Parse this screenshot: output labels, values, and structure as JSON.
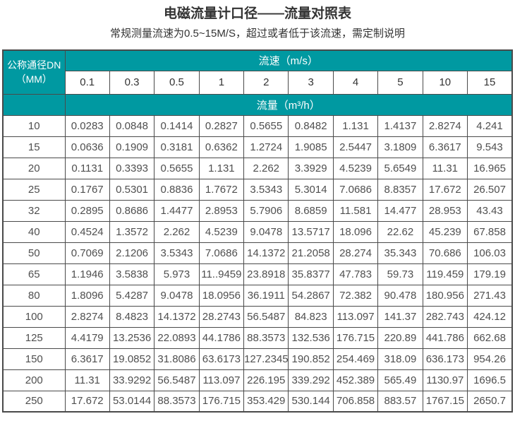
{
  "page": {
    "title": "电磁流量计口径——流量对照表",
    "subtitle": "常规测量流速为0.5~15M/S，超过或者低于该流速，需定制说明"
  },
  "chart_data": {
    "type": "table",
    "title": "电磁流量计口径——流量对照表",
    "subtitle": "常规测量流速为0.5~15M/S，超过或者低于该流速，需定制说明",
    "corner_header_line1": "公称通径DN",
    "corner_header_line2": "（MM）",
    "speed_header": "流速（m/s）",
    "flow_header": "流量（m³/h）",
    "speed_values": [
      "0.1",
      "0.3",
      "0.5",
      "1",
      "2",
      "3",
      "4",
      "5",
      "10",
      "15"
    ],
    "rows": [
      {
        "dn": "10",
        "flows": [
          "0.0283",
          "0.0848",
          "0.1414",
          "0.2827",
          "0.5655",
          "0.8482",
          "1.131",
          "1.4137",
          "2.8274",
          "4.241"
        ]
      },
      {
        "dn": "15",
        "flows": [
          "0.0636",
          "0.1909",
          "0.3181",
          "0.6362",
          "1.2724",
          "1.9085",
          "2.5447",
          "3.1809",
          "6.3617",
          "9.543"
        ]
      },
      {
        "dn": "20",
        "flows": [
          "0.1131",
          "0.3393",
          "0.5655",
          "1.131",
          "2.262",
          "3.3929",
          "4.5239",
          "5.6549",
          "11.31",
          "16.965"
        ]
      },
      {
        "dn": "25",
        "flows": [
          "0.1767",
          "0.5301",
          "0.8836",
          "1.7672",
          "3.5343",
          "5.3014",
          "7.0686",
          "8.8357",
          "17.672",
          "26.507"
        ]
      },
      {
        "dn": "32",
        "flows": [
          "0.2895",
          "0.8686",
          "1.4477",
          "2.8953",
          "5.7906",
          "8.6859",
          "11.581",
          "14.477",
          "28.953",
          "43.43"
        ]
      },
      {
        "dn": "40",
        "flows": [
          "0.4524",
          "1.3572",
          "2.262",
          "4.5239",
          "9.0478",
          "13.5717",
          "18.096",
          "22.62",
          "45.239",
          "67.858"
        ]
      },
      {
        "dn": "50",
        "flows": [
          "0.7069",
          "2.1206",
          "3.5343",
          "7.0686",
          "14.1372",
          "21.2058",
          "28.274",
          "35.343",
          "70.686",
          "106.03"
        ]
      },
      {
        "dn": "65",
        "flows": [
          "1.1946",
          "3.5838",
          "5.973",
          "11..9459",
          "23.8918",
          "35.8377",
          "47.783",
          "59.73",
          "119.459",
          "179.19"
        ]
      },
      {
        "dn": "80",
        "flows": [
          "1.8096",
          "5.4287",
          "9.0478",
          "18.0956",
          "36.1911",
          "54.2867",
          "72.382",
          "90.478",
          "180.956",
          "271.43"
        ]
      },
      {
        "dn": "100",
        "flows": [
          "2.8274",
          "8.4823",
          "14.1372",
          "28.2743",
          "56.5487",
          "84.823",
          "113.097",
          "141.37",
          "282.743",
          "424.12"
        ]
      },
      {
        "dn": "125",
        "flows": [
          "4.4179",
          "13.2536",
          "22.0893",
          "44.1786",
          "88.3573",
          "132.536",
          "176.715",
          "220.89",
          "441.786",
          "662.68"
        ]
      },
      {
        "dn": "150",
        "flows": [
          "6.3617",
          "19.0852",
          "31.8086",
          "63.6173",
          "127.2345",
          "190.852",
          "254.469",
          "318.09",
          "636.173",
          "954.26"
        ]
      },
      {
        "dn": "200",
        "flows": [
          "11.31",
          "33.9292",
          "56.5487",
          "113.097",
          "226.195",
          "339.292",
          "452.389",
          "565.49",
          "1130.97",
          "1696.5"
        ]
      },
      {
        "dn": "250",
        "flows": [
          "17.672",
          "53.0144",
          "88.3573",
          "176.715",
          "353.429",
          "530.144",
          "706.858",
          "883.57",
          "1767.15",
          "2650.7"
        ]
      }
    ]
  },
  "colors": {
    "header_teal": "#0099A1",
    "border": "#4A4A4A",
    "title_text": "#333333",
    "cell_text": "#4F4F4F",
    "header_text": "#FFFFFF"
  }
}
